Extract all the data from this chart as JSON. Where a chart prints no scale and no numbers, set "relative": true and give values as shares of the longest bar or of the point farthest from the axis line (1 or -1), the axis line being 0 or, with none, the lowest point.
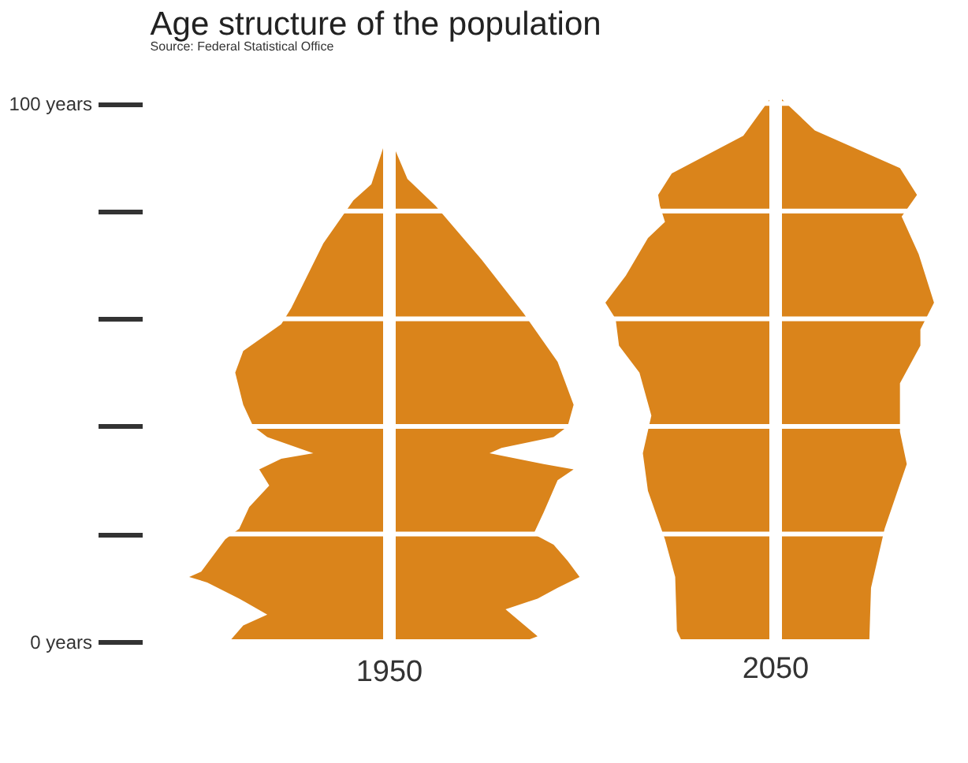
{
  "chart_data": [
    {
      "type": "area",
      "title": "Age structure of the population",
      "annotations": [
        "Source: Federal Statistical Office"
      ],
      "xlabel": "1950",
      "orientation": "horizontal",
      "relative": true,
      "ylim": [
        0,
        104
      ],
      "yticks": [
        {
          "value": 0,
          "label": "0 years"
        },
        {
          "value": 20,
          "label": null
        },
        {
          "value": 40,
          "label": null
        },
        {
          "value": 60,
          "label": null
        },
        {
          "value": 80,
          "label": null
        },
        {
          "value": 100,
          "label": "100 years"
        }
      ],
      "grid": "y",
      "tick_labels": "y",
      "series": [
        {
          "color": "#da841b",
          "x": [
            0,
            3,
            5,
            8,
            11,
            12,
            13,
            19,
            21,
            25,
            29,
            32,
            34,
            35,
            38,
            40,
            44,
            50,
            54,
            59,
            62,
            74,
            82,
            85,
            93
          ],
          "values": [
            -0.8,
            -0.73,
            -0.61,
            -0.75,
            -0.91,
            -1.0,
            -0.94,
            -0.82,
            -0.75,
            -0.7,
            -0.6,
            -0.65,
            -0.54,
            -0.38,
            -0.61,
            -0.68,
            -0.73,
            -0.77,
            -0.73,
            -0.54,
            -0.49,
            -0.33,
            -0.18,
            -0.09,
            -0.02
          ]
        },
        {
          "color": "#da841b",
          "x": [
            0,
            1,
            6,
            8,
            10,
            12,
            15,
            18,
            20,
            24,
            30,
            32,
            33,
            35,
            36,
            38,
            40,
            44,
            52,
            61,
            71,
            81,
            86,
            93
          ],
          "values": [
            0.67,
            0.74,
            0.58,
            0.74,
            0.84,
            0.95,
            0.89,
            0.82,
            0.72,
            0.77,
            0.84,
            0.92,
            0.77,
            0.5,
            0.56,
            0.82,
            0.89,
            0.92,
            0.84,
            0.67,
            0.46,
            0.23,
            0.09,
            0.01
          ]
        }
      ]
    },
    {
      "type": "area",
      "xlabel": "2050",
      "orientation": "horizontal",
      "relative": true,
      "ylim": [
        0,
        104
      ],
      "yticks": [
        {
          "value": 0,
          "label": null
        },
        {
          "value": 20,
          "label": null
        },
        {
          "value": 40,
          "label": null
        },
        {
          "value": 60,
          "label": null
        },
        {
          "value": 80,
          "label": null
        },
        {
          "value": 100,
          "label": null
        }
      ],
      "grid": "y",
      "tick_labels": false,
      "series": [
        {
          "color": "#da841b",
          "x": [
            0,
            2,
            12,
            19,
            28,
            35,
            42,
            50,
            55,
            60,
            63,
            68,
            75,
            78,
            81,
            83,
            87,
            94,
            101
          ],
          "values": [
            -0.55,
            -0.58,
            -0.59,
            -0.65,
            -0.75,
            -0.78,
            -0.73,
            -0.8,
            -0.92,
            -0.94,
            -1.0,
            -0.88,
            -0.75,
            -0.65,
            -0.68,
            -0.69,
            -0.61,
            -0.19,
            -0.03
          ]
        },
        {
          "color": "#da841b",
          "x": [
            0,
            10,
            21,
            33,
            39,
            48,
            55,
            58,
            63,
            72,
            79,
            83,
            88,
            95,
            101
          ],
          "values": [
            0.55,
            0.56,
            0.64,
            0.77,
            0.73,
            0.73,
            0.85,
            0.85,
            0.93,
            0.84,
            0.74,
            0.83,
            0.73,
            0.23,
            0.03
          ]
        }
      ]
    }
  ]
}
